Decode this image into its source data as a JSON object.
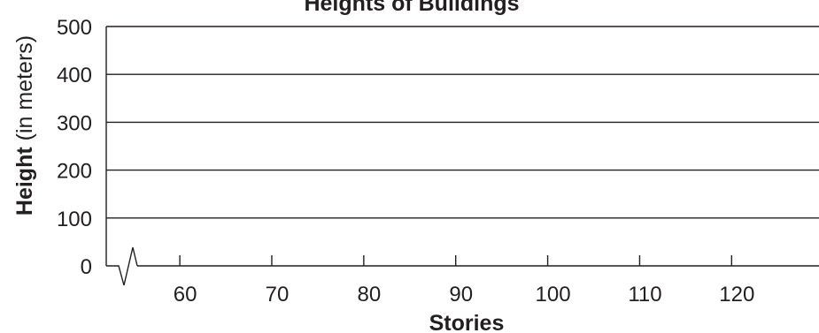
{
  "chart_data": {
    "type": "line",
    "title": "Heights of Buildings",
    "xlabel": "Stories",
    "ylabel_bold": "Height",
    "ylabel_rest": " (in meters)",
    "x_ticks": [
      60,
      70,
      80,
      90,
      100,
      110,
      120
    ],
    "x_tick_labels": [
      "60",
      "70",
      "80",
      "90",
      "100",
      "110",
      "120"
    ],
    "xlim": [
      52,
      129.5
    ],
    "y_ticks": [
      0,
      100,
      200,
      300,
      400,
      500
    ],
    "y_tick_labels": [
      "0",
      "100",
      "200",
      "300",
      "400",
      "500"
    ],
    "ylim": [
      0,
      500
    ],
    "grid": true,
    "axis_break": "x-axis",
    "series": []
  }
}
